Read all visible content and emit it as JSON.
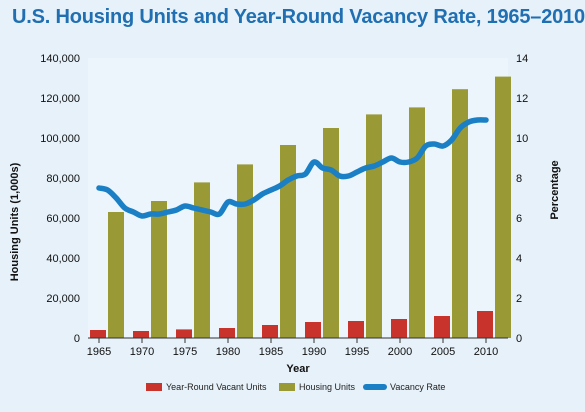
{
  "chart_data": {
    "type": "bar",
    "title": "U.S. Housing Units and Year-Round Vacancy Rate, 1965–2010",
    "xlabel": "Year",
    "ylabel": "Housing Units (1,000s)",
    "y2label": "Percentage",
    "ylim": [
      0,
      140000
    ],
    "y2lim": [
      0,
      14
    ],
    "y_ticks": [
      "0",
      "20,000",
      "40,000",
      "60,000",
      "80,000",
      "100,000",
      "120,000",
      "140,000"
    ],
    "y_tick_values": [
      0,
      20000,
      40000,
      60000,
      80000,
      100000,
      120000,
      140000
    ],
    "y2_ticks": [
      "0",
      "2",
      "4",
      "6",
      "8",
      "10",
      "12",
      "14"
    ],
    "y2_tick_values": [
      0,
      2,
      4,
      6,
      8,
      10,
      12,
      14
    ],
    "categories": [
      "1965",
      "1970",
      "1975",
      "1980",
      "1985",
      "1990",
      "1995",
      "2000",
      "2005",
      "2010"
    ],
    "series": [
      {
        "name": "Year-Round Vacant Units",
        "type": "bar",
        "color": "#c8342b",
        "values": [
          4000,
          3500,
          4300,
          5000,
          6500,
          8000,
          8500,
          9500,
          11000,
          13500
        ]
      },
      {
        "name": "Housing Units",
        "type": "bar",
        "color": "#999a36",
        "values": [
          63000,
          68500,
          77800,
          86800,
          96500,
          105000,
          111800,
          115300,
          124400,
          130700
        ]
      },
      {
        "name": "Vacancy Rate",
        "type": "line",
        "axis": "right",
        "color": "#1a7fc4",
        "x": [
          1965,
          1966,
          1967,
          1968,
          1969,
          1970,
          1971,
          1972,
          1973,
          1974,
          1975,
          1976,
          1977,
          1978,
          1979,
          1980,
          1981,
          1982,
          1983,
          1984,
          1985,
          1986,
          1987,
          1988,
          1989,
          1990,
          1991,
          1992,
          1993,
          1994,
          1995,
          1996,
          1997,
          1998,
          1999,
          2000,
          2001,
          2002,
          2003,
          2004,
          2005,
          2006,
          2007,
          2008,
          2009,
          2010
        ],
        "values": [
          7.5,
          7.4,
          7.0,
          6.5,
          6.3,
          6.1,
          6.2,
          6.2,
          6.3,
          6.4,
          6.6,
          6.5,
          6.4,
          6.3,
          6.2,
          6.8,
          6.7,
          6.7,
          6.9,
          7.2,
          7.4,
          7.6,
          7.9,
          8.1,
          8.2,
          8.8,
          8.5,
          8.4,
          8.1,
          8.1,
          8.3,
          8.5,
          8.6,
          8.8,
          9.0,
          8.8,
          8.8,
          9.0,
          9.6,
          9.7,
          9.6,
          9.9,
          10.5,
          10.8,
          10.9,
          10.9
        ]
      }
    ],
    "legend_position": "bottom",
    "grid": false
  }
}
